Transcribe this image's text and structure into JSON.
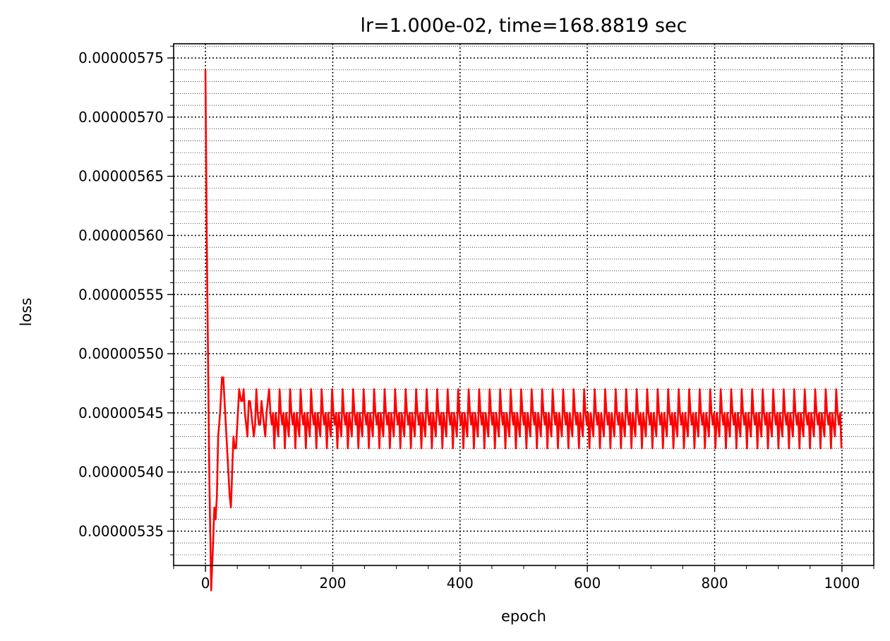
{
  "chart_data": {
    "type": "line",
    "title": "lr=1.000e-02, time=168.8819 sec",
    "xlabel": "epoch",
    "ylabel": "loss",
    "xlim": [
      -50,
      1050
    ],
    "ylim": [
      5.321e-06,
      5.762e-06
    ],
    "x_ticks": [
      0,
      200,
      400,
      600,
      800,
      1000
    ],
    "x_tick_labels": [
      "0",
      "200",
      "400",
      "600",
      "800",
      "1000"
    ],
    "x_minor_step": 50,
    "y_ticks": [
      5.35e-06,
      5.4e-06,
      5.45e-06,
      5.5e-06,
      5.55e-06,
      5.6e-06,
      5.65e-06,
      5.7e-06,
      5.75e-06
    ],
    "y_tick_labels": [
      "0.00000535",
      "0.00000540",
      "0.00000545",
      "0.00000550",
      "0.00000555",
      "0.00000560",
      "0.00000565",
      "0.00000570",
      "0.00000575"
    ],
    "y_minor_step": 1e-08,
    "grid": {
      "major": "dotted",
      "minor": "dotted"
    },
    "line_color": "#ff0000",
    "series": [
      {
        "x": [
          0,
          2,
          4,
          6,
          9,
          12,
          14,
          16,
          18,
          20,
          23,
          26,
          28,
          30,
          33,
          36,
          38,
          40,
          42,
          44,
          46,
          48,
          50,
          53,
          56,
          58,
          60,
          62,
          64,
          66,
          68,
          70,
          72,
          74,
          76,
          78,
          80,
          82,
          84,
          86,
          88,
          90,
          92,
          94,
          96,
          98,
          100
        ],
        "y": [
          5.74e-06,
          5.6e-06,
          5.5e-06,
          5.4e-06,
          5.3e-06,
          5.34e-06,
          5.37e-06,
          5.36e-06,
          5.38e-06,
          5.43e-06,
          5.45e-06,
          5.48e-06,
          5.48e-06,
          5.46e-06,
          5.43e-06,
          5.4e-06,
          5.38e-06,
          5.37e-06,
          5.4e-06,
          5.43e-06,
          5.42e-06,
          5.42e-06,
          5.44e-06,
          5.47e-06,
          5.46e-06,
          5.46e-06,
          5.47e-06,
          5.45e-06,
          5.44e-06,
          5.43e-06,
          5.46e-06,
          5.46e-06,
          5.45e-06,
          5.44e-06,
          5.43e-06,
          5.44e-06,
          5.47e-06,
          5.45e-06,
          5.44e-06,
          5.44e-06,
          5.46e-06,
          5.45e-06,
          5.44e-06,
          5.43e-06,
          5.45e-06,
          5.46e-06,
          5.47e-06
        ]
      }
    ],
    "periodic_tail": {
      "start_epoch": 100,
      "end_epoch": 1000,
      "period_epochs": 16.5,
      "cycle_shape": [
        5.47e-06,
        5.45e-06,
        5.44e-06,
        5.45e-06,
        5.42e-06,
        5.45e-06,
        5.44e-06,
        5.43e-06
      ]
    }
  }
}
